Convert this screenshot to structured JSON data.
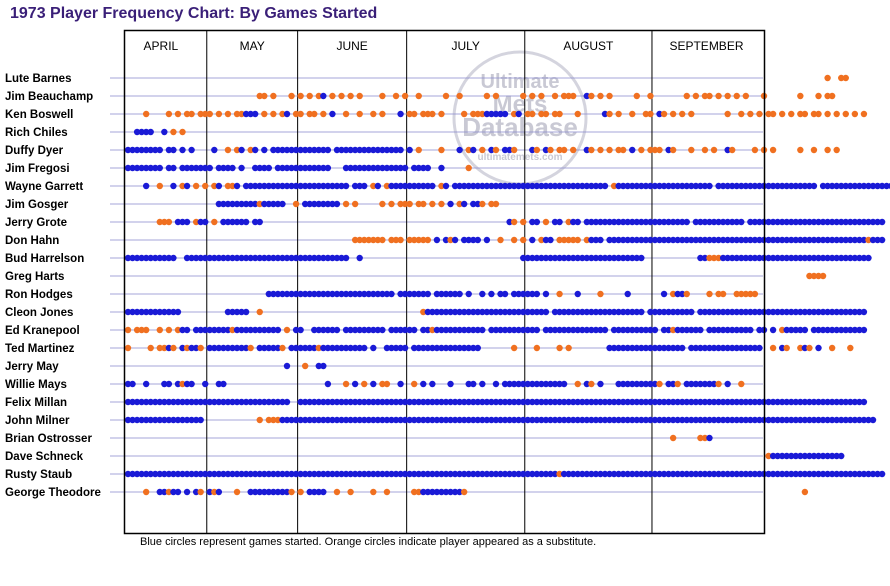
{
  "title": "1973 Player Frequency Chart: By Games Started",
  "footnote": "Blue circles represent games started. Orange circles indicate player appeared as a substitute.",
  "watermark": {
    "lines": [
      "Ultimate",
      "Mets",
      "Database"
    ],
    "url": "ultimatemets.com"
  },
  "colors": {
    "started": "#1a1ad6",
    "substitute": "#f07020",
    "gridline": "#8888cc",
    "title": "#3a1f78"
  },
  "chart_data": {
    "type": "scatter",
    "title": "1973 Player Frequency Chart: By Games Started",
    "months": [
      {
        "name": "APRIL",
        "games": 18
      },
      {
        "name": "MAY",
        "games": 20
      },
      {
        "name": "JUNE",
        "games": 24
      },
      {
        "name": "JULY",
        "games": 26
      },
      {
        "name": "AUGUST",
        "games": 28
      },
      {
        "name": "SEPTEMBER",
        "games": 24
      }
    ],
    "legend": {
      "started": "games started",
      "substitute": "player appeared as a substitute"
    },
    "players": [
      {
        "name": "Lute Barnes",
        "pattern": "..........................................................................................................................................................o..oo."
      },
      {
        "name": "Jim Beauchamp",
        "pattern": ".............................oo.o...o.o.o.ob.o.o.o.o....o..o.o..o.....o..o.....o.o.....o.o.o..o.ooo..bo.o.o.....o..o.......o.o.oo.o.o.o.o...o.......o...o.oo...."
      },
      {
        "name": "Ken Boswell",
        "pattern": "....o....o.o.oo.ooo.o.o.oobbb.o.o.ob.oo.oo.o.b..o..o..o.o...b.oo.ooo.o....o.ooobbbbb.ob.oo.oo.oo...o.....bo.o..o..oo.bo.o.o.o.......o..o.o.o.oo.o.o.oo.oo.o.o.o.o.o"
      },
      {
        "name": "Rich Chiles",
        "pattern": "..bbbb..b.o.o......................................................................................................................................................"
      },
      {
        "name": "Duffy Dyer",
        "pattern": "bbbbbbbb.bb.b.b....b..o.ob.ob.b.bbbbbbbbbbbbb.bbbbbbbbbbbbbbb.b.o....o...b.ob.o.bo.bbo...bo.bo.oo.o..bo.o.o.oo.b.o.ooo.bo...o..o.o..bo....o.o.o.....o..o..o.o..."
      },
      {
        "name": "Jim Fregosi",
        "pattern": "bbbbbbbb.bb.bbbbbbb.bbbb.b..bbbb.bbbbbbbbbbbb...bbbbbbbbbbbbbb.bbbb..b.....o....................................................................................."
      },
      {
        "name": "Wayne Garrett",
        "pattern": "....b..o..b.ob.o.o.ob.oob.bbbbbbbbbbbbbbbbbbbbbbb.bbb.ob.obbbbbbbbbb.ob.bbbbbbbbbbbbbbbbbbbbbbbbbbbbbbbbbb.obbbbbbbbbbbbbbbbbbbbb.bbbbbbbbbbbbbbbbbbbbbb.bbbbbbbbbbbbbbbbbb"
      },
      {
        "name": "Jim Gosger",
        "pattern": "....................bbbbbbbbbobbbbb..o.bbbbbbbb.o.o.....o.o.ooo.oo.o.o.b.ob.bbo.oo.........................................................................."
      },
      {
        "name": "Jerry Grote",
        "pattern": ".......ooo.bbb.obb.o.bbbbbb.bb......................................................bo.o.bb.o.bb.obb.bbbbbbbbbbbbbbbbbbbbbbb.bbbbbbbbbbb.bbbbbbbbbbbbbbbbbbbbbbbbbbbbbb"
      },
      {
        "name": "Don Hahn",
        "pattern": "..................................................ooooooo.ooo.ooooo.b.bob.bbbb.b..o..o.o.b.obb.ooooo.obbb.bbbbbbbbbbbbbbbbbbbbbbbbbbbbbbbbbbbbbbbbbbbbbbbbbbbbbbbbbobbb"
      },
      {
        "name": "Bud Harrelson",
        "pattern": "bbbbbbbbbbb..bbbbbbbbbbbbbbbbbbbbbbbbbbbbbbbbbbbb..b...................................bbbbbbbbbbbbbbbbbbbbbbbbbbb............bbooobbbbbbbbbbbbbbbbbbbbbbbbbbbbbbbbb"
      },
      {
        "name": "Greg Harts",
        "pattern": "......................................................................................................................................................oooo..."
      },
      {
        "name": "Ron Hodges",
        "pattern": "...............................bbbbbbbbbbbbbbbbbbbbbbbbbbbb.bbbbbbb.bbbbbb.b..b.b.bb.bbbbbb.b..o...b....o.....b.......b.obbo....o.oo..ooooo..................."
      },
      {
        "name": "Cleon Jones",
        "pattern": "bbbbbbbbbbbb..........bbbbb..o...................................obbbbbbbbbbbbbbbbbbbbbbbbbbb.bbbbbbbbbbbbbbbbbbbb.bbbbbbbbbb.bbbbbbbbbbbbbbbbbbbbbbbbbbbbbbbbbbbbb"
      },
      {
        "name": "Ed Kranepool",
        "pattern": "o.ooo..o.o.obb.bbbbbbbbobbbbbbbbbb.o.bb..bbbbbb.bbbbbbbbb.bbbbbb.bbobbbbbbbbbbb.bbbbbbbbbbb.bbbbbbbbbbbbbb.bbbbbbbbbb.bbobbbbbb.bbbbbbbbbb.bb.b.obbbbb.bbbbbbbbbbbb"
      },
      {
        "name": "Ted Martinez",
        "pattern": "o....o.oobo.bobbo.bbbbbbbbbo.bbbbbo.bbbbbbobbbbbbbbbb.b..bbbbb.bbbbbbbbbbbbbbb.......o....o....o.o........bbbbbbbbbbbbbbbbb.bbbbbbbbbbbbbbbb..o.bo..obo.b..o...o..."
      },
      {
        "name": "Jerry May",
        "pattern": "...................................b...o..bb......................................................................................................................."
      },
      {
        "name": "Willie Mays",
        "pattern": "bb..b...bb.bobb..b..bb......................b...o.b.o.b.oo..b..o.b.b...b...bb.b..b.bbbbbbbbbbbbbb..o.bo.b...bbbbbbbbbo.bbo.bbbbbbbo.b..o..............................."
      },
      {
        "name": "Felix Millan",
        "pattern": "bbbbbbbbbbbbbbbbbbbbbbbbbbbbbbbbbbbb..bbbbbbbbbbbbbbbbbbbbbbbbbbbbbbbbbbbbbbbbbbbbbbbbbbbbbbbbbbbbbbbbbbbbbbbbbbbbbbbbbbbbbbbbbbbbbbbbbbbbbbbbbbbbbbbbbbbbbbbbbbbbb"
      },
      {
        "name": "John Milner",
        "pattern": "bbbbbbbbbbbbbbbbb............o.ooobbbbbbbbbbbbbbbbbbbbbbbbbbbbbbbbbbbbbbbbbbbbbbbbbbbbbbbbbbbbbbbbbbbbbbbbbbbbbbbbbbbbbbbbbbbbbbbbbbbbbbbbbbbbbbbbbbbbbbbbbbbbbbbbbbb"
      },
      {
        "name": "Brian Ostrosser",
        "pattern": "........................................................................................................................o.....oob......................................."
      },
      {
        "name": "Dave Schneck",
        "pattern": ".............................................................................................................................................obbbbbbbbbbbbbbbb."
      },
      {
        "name": "Rusty Staub",
        "pattern": "bbbbbbbbbbbbbbbbbbbbbbbbbbbbbbbbbbbbbbbbbbbbbbbbbbbbbbbbbbbbbbbbbbbbbbbbbbbbbbbbbbbbbbbbbbbbbbbobbbbbbbbbbbbbbbbbbbbbbbbbbbbbbbbbbbbbbbbbbbbbbbbbbbbbbbbbbbbbbbbbbbbbbb"
      },
      {
        "name": "George Theodore",
        "pattern": "....o..bbobb.b.bo.bob...o..bbbbbbbbbo.o.bbbb..o..o....o..o.....oobbbbbbbbbo..........................................................................o............"
      }
    ]
  }
}
